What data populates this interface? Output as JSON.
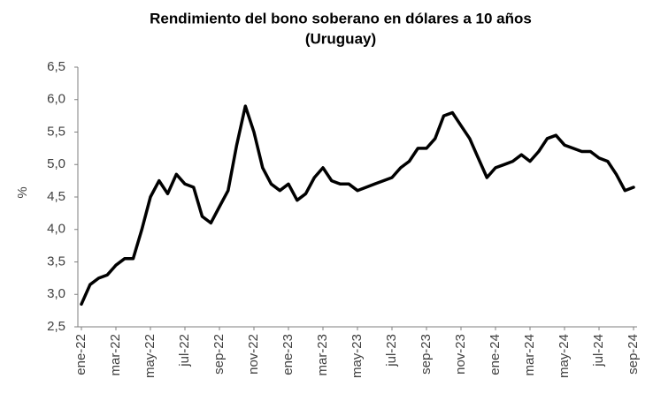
{
  "chart_data": {
    "type": "line",
    "title": [
      "Rendimiento del bono soberano en dólares a 10 años",
      "(Uruguay)"
    ],
    "y_label": "%",
    "categories": [
      "ene-22",
      null,
      null,
      null,
      "mar-22",
      null,
      null,
      null,
      "may-22",
      null,
      null,
      null,
      "jul-22",
      null,
      null,
      null,
      "sep-22",
      null,
      null,
      null,
      "nov-22",
      null,
      null,
      null,
      "ene-23",
      null,
      null,
      null,
      "mar-23",
      null,
      null,
      null,
      "may-23",
      null,
      null,
      null,
      "jul-23",
      null,
      null,
      null,
      "sep-23",
      null,
      null,
      null,
      "nov-23",
      null,
      null,
      null,
      "ene-24",
      null,
      null,
      null,
      "mar-24",
      null,
      null,
      null,
      "may-24",
      null,
      null,
      null,
      "jul-24",
      null,
      null,
      null,
      "sep-24"
    ],
    "series": [
      {
        "color": "#000000",
        "values": [
          2.85,
          3.15,
          3.25,
          3.3,
          3.45,
          3.55,
          3.55,
          4.0,
          4.5,
          4.75,
          4.55,
          4.85,
          4.7,
          4.65,
          4.2,
          4.1,
          4.35,
          4.6,
          5.3,
          5.9,
          5.5,
          4.95,
          4.7,
          4.6,
          4.7,
          4.45,
          4.55,
          4.8,
          4.95,
          4.75,
          4.7,
          4.7,
          4.6,
          4.65,
          4.7,
          4.75,
          4.8,
          4.95,
          5.05,
          5.25,
          5.25,
          5.4,
          5.75,
          5.8,
          5.6,
          5.4,
          5.1,
          4.8,
          4.95,
          5.0,
          5.05,
          5.15,
          5.05,
          5.2,
          5.4,
          5.45,
          5.3,
          5.25,
          5.2,
          5.2,
          5.1,
          5.05,
          4.85,
          4.6,
          4.65
        ]
      }
    ],
    "ylim": [
      2.5,
      6.5
    ],
    "yticks": [
      {
        "value": 2.5,
        "label": "2,5"
      },
      {
        "value": 3.0,
        "label": "3,0"
      },
      {
        "value": 3.5,
        "label": "3,5"
      },
      {
        "value": 4.0,
        "label": "4,0"
      },
      {
        "value": 4.5,
        "label": "4,5"
      },
      {
        "value": 5.0,
        "label": "5,0"
      },
      {
        "value": 5.5,
        "label": "5,5"
      },
      {
        "value": 6.0,
        "label": "6,0"
      },
      {
        "value": 6.5,
        "label": "6,5"
      }
    ],
    "grid": false
  }
}
